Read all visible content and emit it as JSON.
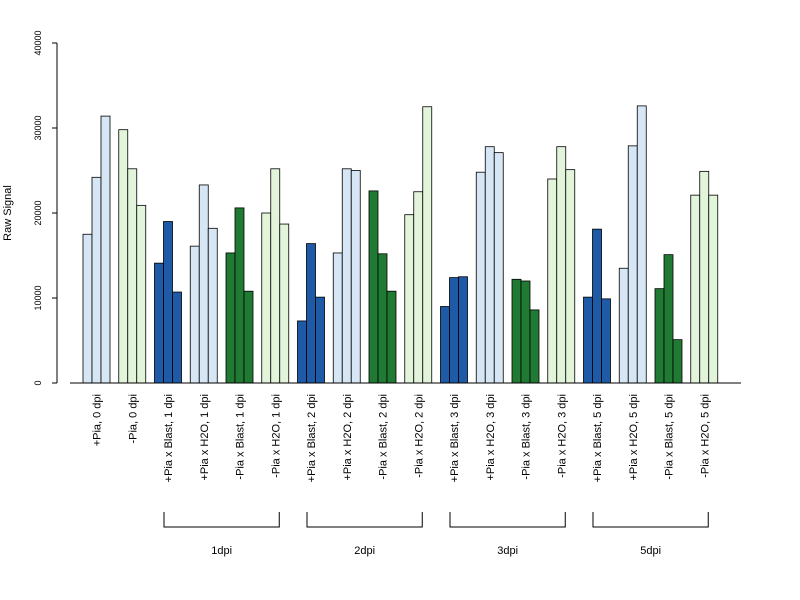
{
  "chart_data": {
    "type": "bar",
    "ylabel": "Raw Signal",
    "ylim": [
      0,
      40000
    ],
    "yticks": [
      0,
      10000,
      20000,
      30000,
      40000
    ],
    "grid": false,
    "bars_per_category": 3,
    "categories": [
      "+Pia, 0 dpi",
      "-Pia, 0 dpi",
      "+Pia x Blast, 1 dpi",
      "+Pia x H2O, 1 dpi",
      "-Pia x Blast, 1 dpi",
      "-Pia x H2O, 1 dpi",
      "+Pia x Blast, 2 dpi",
      "+Pia x H2O, 2 dpi",
      "-Pia x Blast, 2 dpi",
      "-Pia x H2O, 2 dpi",
      "+Pia x Blast, 3 dpi",
      "+Pia x H2O, 3 dpi",
      "-Pia x Blast, 3 dpi",
      "-Pia x H2O, 3 dpi",
      "+Pia x Blast, 5 dpi",
      "+Pia x H2O, 5 dpi",
      "-Pia x Blast, 5 dpi",
      "-Pia x H2O, 5 dpi"
    ],
    "colors": {
      "+Pia x Blast": "#1f5aa6",
      "+Pia x H2O": "#d6e6f5",
      "-Pia x Blast": "#217a33",
      "-Pia x H2O": "#e2f5da"
    },
    "category_colors": [
      "#d6e6f5",
      "#e2f5da",
      "#1f5aa6",
      "#d6e6f5",
      "#217a33",
      "#e2f5da",
      "#1f5aa6",
      "#d6e6f5",
      "#217a33",
      "#e2f5da",
      "#1f5aa6",
      "#d6e6f5",
      "#217a33",
      "#e2f5da",
      "#1f5aa6",
      "#d6e6f5",
      "#217a33",
      "#e2f5da"
    ],
    "values": [
      [
        17500,
        24200,
        31400
      ],
      [
        29800,
        25200,
        20900
      ],
      [
        14100,
        19000,
        10700
      ],
      [
        16100,
        23300,
        18200
      ],
      [
        15300,
        20600,
        10800
      ],
      [
        20000,
        25200,
        18700
      ],
      [
        7300,
        16400,
        10100
      ],
      [
        15300,
        25200,
        25000
      ],
      [
        22600,
        15200,
        10800
      ],
      [
        19800,
        22500,
        32500
      ],
      [
        9000,
        12400,
        12500
      ],
      [
        24800,
        27800,
        27100
      ],
      [
        12200,
        12000,
        8600
      ],
      [
        24000,
        27800,
        25100
      ],
      [
        10100,
        18100,
        9900
      ],
      [
        13500,
        27900,
        32600
      ],
      [
        11100,
        15100,
        5100
      ],
      [
        22100,
        24900,
        22100
      ]
    ],
    "groups": [
      {
        "label": "1dpi",
        "from": 2,
        "to": 5
      },
      {
        "label": "2dpi",
        "from": 6,
        "to": 9
      },
      {
        "label": "3dpi",
        "from": 10,
        "to": 13
      },
      {
        "label": "5dpi",
        "from": 14,
        "to": 17
      }
    ]
  }
}
